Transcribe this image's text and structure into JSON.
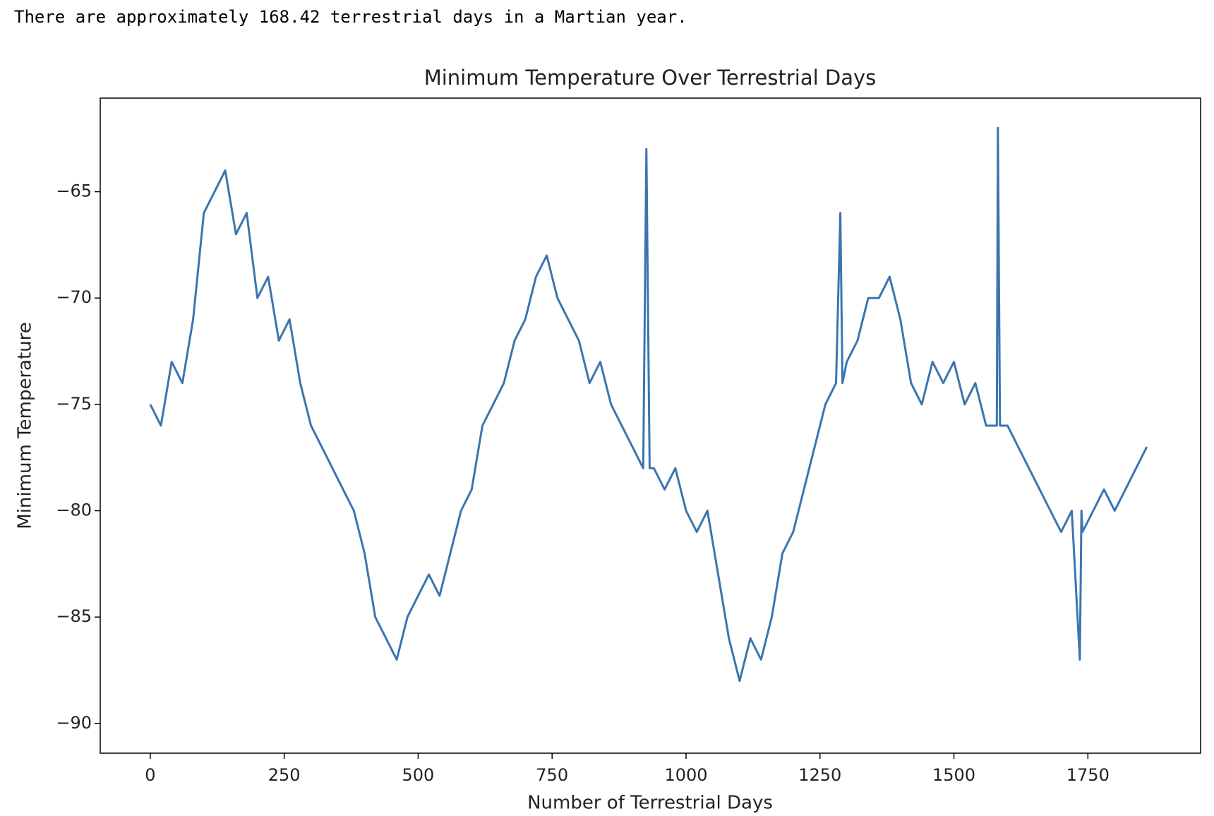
{
  "header": {
    "text": "There are approximately 168.42 terrestrial days in a Martian year."
  },
  "chart_data": {
    "type": "line",
    "title": "Minimum Temperature Over Terrestrial Days",
    "x_label": "Number of Terrestrial Days",
    "y_label": "Minimum Temperature",
    "color": "#3b75af",
    "x": [
      0,
      20,
      40,
      60,
      80,
      100,
      120,
      140,
      160,
      180,
      200,
      220,
      240,
      260,
      280,
      300,
      320,
      340,
      360,
      380,
      400,
      420,
      440,
      460,
      480,
      500,
      520,
      540,
      560,
      580,
      600,
      620,
      640,
      660,
      680,
      700,
      720,
      740,
      760,
      780,
      800,
      820,
      840,
      860,
      880,
      900,
      920,
      926,
      932,
      940,
      960,
      980,
      1000,
      1020,
      1040,
      1060,
      1080,
      1100,
      1120,
      1140,
      1160,
      1180,
      1200,
      1220,
      1240,
      1260,
      1280,
      1288,
      1292,
      1300,
      1320,
      1340,
      1360,
      1380,
      1400,
      1420,
      1440,
      1460,
      1480,
      1500,
      1520,
      1540,
      1560,
      1580,
      1582,
      1586,
      1600,
      1620,
      1640,
      1660,
      1680,
      1700,
      1720,
      1735,
      1738,
      1740,
      1760,
      1780,
      1800,
      1820,
      1840,
      1860
    ],
    "values": [
      -75,
      -76,
      -73,
      -74,
      -71,
      -66,
      -65,
      -64,
      -67,
      -66,
      -70,
      -69,
      -72,
      -71,
      -74,
      -76,
      -77,
      -78,
      -79,
      -80,
      -82,
      -85,
      -86,
      -87,
      -85,
      -84,
      -83,
      -84,
      -82,
      -80,
      -79,
      -76,
      -75,
      -74,
      -72,
      -71,
      -69,
      -68,
      -70,
      -71,
      -72,
      -74,
      -73,
      -75,
      -76,
      -77,
      -78,
      -63,
      -78,
      -78,
      -79,
      -78,
      -80,
      -81,
      -80,
      -83,
      -86,
      -88,
      -86,
      -87,
      -85,
      -82,
      -81,
      -79,
      -77,
      -75,
      -74,
      -66,
      -74,
      -73,
      -72,
      -70,
      -70,
      -69,
      -71,
      -74,
      -75,
      -73,
      -74,
      -73,
      -75,
      -74,
      -76,
      -76,
      -62,
      -76,
      -76,
      -77,
      -78,
      -79,
      -80,
      -81,
      -80,
      -87,
      -80,
      -81,
      -80,
      -79,
      -80,
      -79,
      -78,
      -77
    ],
    "xlim": [
      -93.35,
      1960.35
    ],
    "ylim": [
      -91.4,
      -60.6
    ],
    "xticks": [
      0,
      250,
      500,
      750,
      1000,
      1250,
      1500,
      1750
    ],
    "yticks": [
      {
        "value": -90,
        "label": "−90"
      },
      {
        "value": -85,
        "label": "−85"
      },
      {
        "value": -80,
        "label": "−80"
      },
      {
        "value": -75,
        "label": "−75"
      },
      {
        "value": -70,
        "label": "−70"
      },
      {
        "value": -65,
        "label": "−65"
      }
    ]
  }
}
